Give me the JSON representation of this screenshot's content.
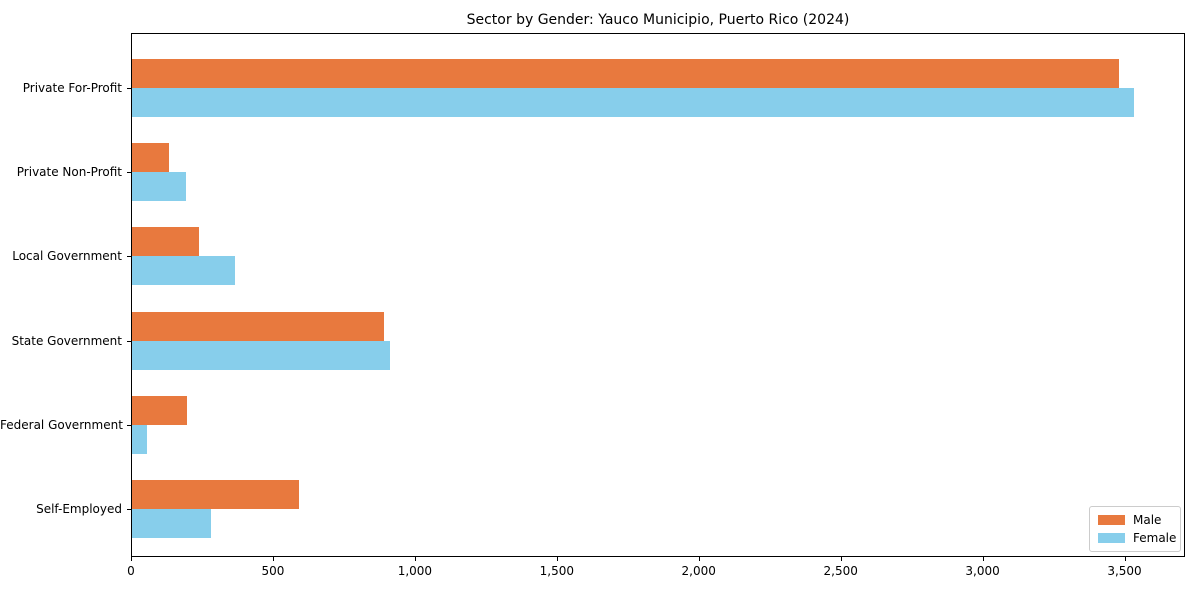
{
  "title": "Sector by Gender: Yauco Municipio, Puerto Rico (2024)",
  "chart_data": {
    "type": "bar",
    "orientation": "horizontal",
    "title": "Sector by Gender: Yauco Municipio, Puerto Rico (2024)",
    "categories": [
      "Private For-Profit",
      "Private Non-Profit",
      "Local Government",
      "State Government",
      "Federal Government",
      "Self-Employed"
    ],
    "series": [
      {
        "name": "Male",
        "color": "#e8793e",
        "values": [
          3478,
          130,
          235,
          886,
          193,
          587
        ]
      },
      {
        "name": "Female",
        "color": "#87ceeb",
        "values": [
          3530,
          190,
          362,
          907,
          53,
          278
        ]
      }
    ],
    "xlabel": "",
    "ylabel": "",
    "xlim": [
      0,
      3706
    ],
    "xticks": [
      0,
      500,
      1000,
      1500,
      2000,
      2500,
      3000,
      3500
    ],
    "xtick_labels": [
      "0",
      "500",
      "1,000",
      "1,500",
      "2,000",
      "2,500",
      "3,000",
      "3,500"
    ],
    "grid": false,
    "legend_position": "lower right",
    "plot_border_color": "#000000",
    "background_color": "#ffffff"
  }
}
